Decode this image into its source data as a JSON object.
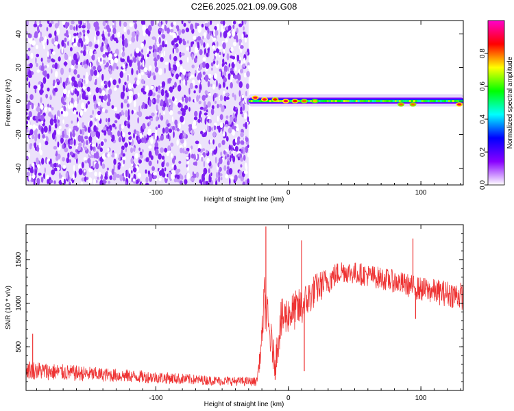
{
  "title": "C2E6.2025.021.09.09.G08",
  "chart_data": [
    {
      "type": "heatmap",
      "xlabel": "Height of straight line (km)",
      "ylabel": "Frequency (Hz)",
      "xlim": [
        -198,
        132
      ],
      "ylim": [
        -50,
        48
      ],
      "xticks": [
        -100,
        0,
        100
      ],
      "yticks": [
        -40,
        -20,
        0,
        20,
        40
      ],
      "noise_region_x": [
        -198,
        -30
      ],
      "signal_line": {
        "x_start": -30,
        "x_end": 132,
        "freq": 0,
        "high_amplitude_points": [
          {
            "x": -25,
            "y": 2,
            "amplitude": 0.9
          },
          {
            "x": -18,
            "y": 1,
            "amplitude": 0.9
          },
          {
            "x": -10,
            "y": 1,
            "amplitude": 0.85
          },
          {
            "x": -2,
            "y": 0,
            "amplitude": 0.9
          },
          {
            "x": 5,
            "y": 0,
            "amplitude": 0.85
          },
          {
            "x": 12,
            "y": 0,
            "amplitude": 0.8
          },
          {
            "x": 20,
            "y": 0,
            "amplitude": 0.75
          },
          {
            "x": 85,
            "y": -2,
            "amplitude": 0.8
          },
          {
            "x": 94,
            "y": -2,
            "amplitude": 0.8
          },
          {
            "x": 129,
            "y": -2,
            "amplitude": 0.9
          }
        ]
      },
      "colorbar": {
        "label": "Normalized spectral amplitude",
        "ticks": [
          0.0,
          0.2,
          0.4,
          0.6,
          0.8
        ],
        "range": [
          0,
          1
        ],
        "colors": [
          "#ffffff",
          "#8800ff",
          "#0000ff",
          "#00ffff",
          "#00ff00",
          "#ffff00",
          "#ff0000",
          "#ff00cc"
        ]
      }
    },
    {
      "type": "line",
      "xlabel": "Height of straight line (km)",
      "ylabel": "SNR (10 * v/v)",
      "xlim": [
        -198,
        132
      ],
      "ylim": [
        0,
        1900
      ],
      "xticks": [
        -100,
        0,
        100
      ],
      "yticks": [
        500,
        1000,
        1500
      ],
      "line_color": "#ee3333",
      "anchors": [
        {
          "x": -198,
          "mean": 240,
          "amp": 110
        },
        {
          "x": -180,
          "mean": 215,
          "amp": 100
        },
        {
          "x": -140,
          "mean": 180,
          "amp": 80
        },
        {
          "x": -100,
          "mean": 150,
          "amp": 70
        },
        {
          "x": -60,
          "mean": 115,
          "amp": 55
        },
        {
          "x": -24,
          "mean": 100,
          "amp": 50
        },
        {
          "x": -21,
          "mean": 420,
          "amp": 120
        },
        {
          "x": -18,
          "mean": 1050,
          "amp": 300
        },
        {
          "x": -15,
          "mean": 720,
          "amp": 260
        },
        {
          "x": -10,
          "mean": 300,
          "amp": 180
        },
        {
          "x": -6,
          "mean": 780,
          "amp": 260
        },
        {
          "x": 0,
          "mean": 880,
          "amp": 220
        },
        {
          "x": 10,
          "mean": 950,
          "amp": 240
        },
        {
          "x": 20,
          "mean": 1150,
          "amp": 190
        },
        {
          "x": 40,
          "mean": 1370,
          "amp": 130
        },
        {
          "x": 60,
          "mean": 1320,
          "amp": 130
        },
        {
          "x": 80,
          "mean": 1250,
          "amp": 130
        },
        {
          "x": 100,
          "mean": 1160,
          "amp": 140
        },
        {
          "x": 132,
          "mean": 1080,
          "amp": 160
        }
      ],
      "spikes": [
        {
          "x": -193,
          "y": 650
        },
        {
          "x": -17,
          "y": 1880
        },
        {
          "x": -10,
          "y": 120
        },
        {
          "x": 10,
          "y": 1720
        },
        {
          "x": 12,
          "y": 220
        },
        {
          "x": 94,
          "y": 1740
        },
        {
          "x": 96,
          "y": 820
        }
      ]
    }
  ]
}
